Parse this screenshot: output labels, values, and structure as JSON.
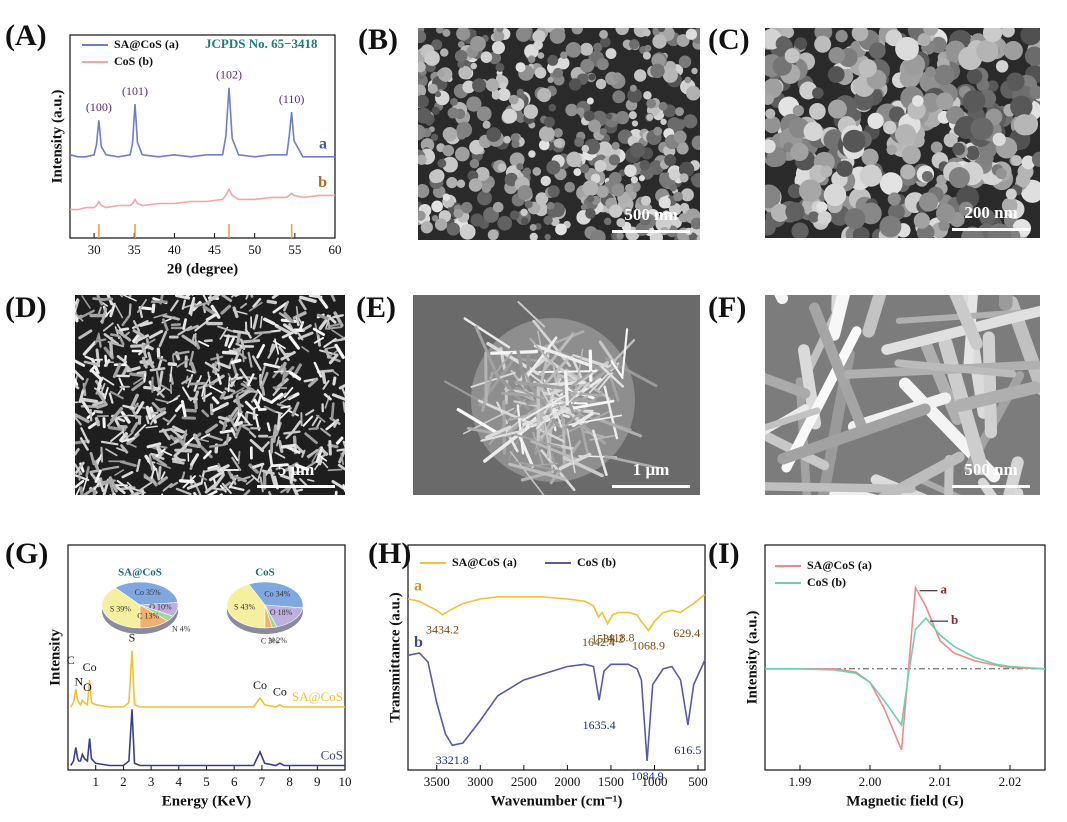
{
  "chart_data": [
    {
      "type": "line",
      "panel": "(A)",
      "note": "JCPDS No. 65−3418",
      "xlabel": "2θ (degree)",
      "ylabel": "Intensity (a.u.)",
      "x": [
        27,
        28,
        29,
        30,
        30.3,
        30.6,
        30.9,
        31.5,
        33,
        34.5,
        34.8,
        35.1,
        35.4,
        36,
        38,
        40,
        42,
        44,
        46,
        46.4,
        46.8,
        47.2,
        48,
        50,
        52,
        54,
        54.3,
        54.6,
        54.9,
        56,
        58,
        60
      ],
      "series": [
        {
          "name": "SA@CoS (a)",
          "label": "a",
          "color": "#6f7fc4",
          "values": [
            41,
            40,
            40,
            41,
            46,
            58,
            45,
            41,
            40,
            41,
            47,
            66,
            47,
            41,
            40,
            41,
            40,
            41,
            41,
            50,
            74,
            49,
            41,
            40,
            41,
            41,
            50,
            62,
            48,
            40,
            40,
            40
          ]
        },
        {
          "name": "CoS (b)",
          "label": "b",
          "color": "#f4a6a6",
          "values": [
            14,
            14,
            15,
            15,
            16,
            18,
            16,
            15,
            16,
            16,
            17,
            19,
            17,
            16,
            17,
            17,
            18,
            18,
            19,
            21,
            24,
            21,
            19,
            19,
            20,
            20,
            21,
            22,
            21,
            20,
            21,
            21
          ]
        }
      ],
      "reference_peaks": [
        30.6,
        35.1,
        46.8,
        54.6
      ],
      "reference_color": "#f0a030",
      "peak_labels": [
        "(100)",
        "(101)",
        "(102)",
        "(110)"
      ],
      "xlim": [
        27,
        60
      ],
      "xticks": [
        30,
        35,
        40,
        45,
        50,
        55,
        60
      ],
      "ylim": [
        0,
        100
      ]
    },
    {
      "type": "line",
      "panel": "(G)",
      "xlabel": "Energy (KeV)",
      "ylabel": "Intensity",
      "x": [
        0.1,
        0.2,
        0.28,
        0.35,
        0.39,
        0.45,
        0.52,
        0.6,
        0.7,
        0.78,
        0.85,
        1,
        1.5,
        2,
        2.2,
        2.31,
        2.4,
        2.6,
        3,
        4,
        5,
        6,
        6.7,
        6.93,
        7.1,
        7.5,
        7.65,
        7.8,
        8.5,
        9,
        10
      ],
      "series": [
        {
          "name": "SA@CoS",
          "color": "#f2c232",
          "values": [
            28,
            30,
            36,
            31,
            30,
            29,
            31,
            30,
            29,
            40,
            30,
            29,
            28,
            28,
            30,
            53,
            29,
            28,
            28,
            28,
            28,
            28,
            28,
            32,
            29,
            28,
            29,
            28,
            28,
            28,
            28
          ]
        },
        {
          "name": "CoS",
          "color": "#3a3f8a",
          "values": [
            2,
            4,
            10,
            5,
            4,
            4,
            7,
            5,
            4,
            14,
            5,
            3,
            2,
            2,
            4,
            27,
            3,
            2,
            2,
            2,
            2,
            2,
            2,
            8,
            3,
            2,
            3,
            2,
            2,
            2,
            2
          ]
        }
      ],
      "peak_positions": [
        0.28,
        0.39,
        0.52,
        0.78,
        2.31,
        6.93,
        7.65
      ],
      "peak_labels": [
        "C",
        "N",
        "O",
        "Co",
        "S",
        "Co",
        "Co"
      ],
      "xlim": [
        0,
        10
      ],
      "xticks": [
        1,
        2,
        3,
        4,
        5,
        6,
        7,
        8,
        9,
        10
      ],
      "ylim": [
        0,
        100
      ],
      "insets": [
        {
          "type": "pie",
          "title": "SA@CoS",
          "values": [
            39,
            35,
            10,
            4,
            13
          ],
          "value_labels": [
            "S 39%",
            "Co 35%",
            "O 10%",
            "N 4%",
            "C 13%"
          ],
          "colors": [
            "#f5f0a0",
            "#7fa8e0",
            "#c0b0e0",
            "#a0d8a0",
            "#f0b070"
          ]
        },
        {
          "type": "pie",
          "title": "CoS",
          "values": [
            43,
            34,
            18,
            2,
            3
          ],
          "value_labels": [
            "S 43%",
            "Co 34%",
            "O 18%",
            "N 2%",
            "C 3%"
          ],
          "colors": [
            "#f5f0a0",
            "#7fa8e0",
            "#c0b0e0",
            "#a0d8a0",
            "#f0b070"
          ]
        }
      ]
    },
    {
      "type": "line",
      "panel": "(H)",
      "xlabel": "Wavenumber (cm⁻¹)",
      "ylabel": "Transmittance (a.u.)",
      "series": [
        {
          "name": "SA@CoS (a)",
          "label": "a",
          "color": "#f2c232",
          "x": [
            3830,
            3700,
            3600,
            3500,
            3434.2,
            3350,
            3200,
            3000,
            2800,
            2500,
            2300,
            2000,
            1800,
            1700,
            1642.4,
            1600,
            1538.2,
            1480,
            1418.8,
            1300,
            1200,
            1150,
            1068.9,
            1000,
            900,
            800,
            700,
            629.4,
            550,
            420
          ],
          "values": [
            76,
            75,
            73,
            71,
            69,
            71,
            74,
            76,
            77,
            77,
            77,
            76,
            75,
            73,
            68,
            70,
            65,
            69,
            70,
            70,
            69,
            66,
            62,
            66,
            70,
            71,
            70,
            72,
            74,
            78
          ],
          "peaks": [
            3434.2,
            1642.4,
            1538.2,
            1418.8,
            1068.9,
            629.4
          ]
        },
        {
          "name": "CoS (b)",
          "label": "b",
          "color": "#5a5aa8",
          "x": [
            3830,
            3700,
            3600,
            3500,
            3400,
            3321.8,
            3200,
            3000,
            2800,
            2500,
            2000,
            1800,
            1700,
            1635.4,
            1580,
            1500,
            1300,
            1200,
            1150,
            1084.9,
            1020,
            900,
            800,
            700,
            616.5,
            550,
            420
          ],
          "values": [
            51,
            52,
            48,
            30,
            16,
            11,
            12,
            22,
            33,
            40,
            46,
            47,
            46,
            31,
            44,
            47,
            47,
            45,
            40,
            4,
            38,
            45,
            46,
            40,
            20,
            38,
            49
          ],
          "peaks": [
            3321.8,
            1635.4,
            1084.9,
            616.5
          ]
        }
      ],
      "xlim": [
        3830,
        420
      ],
      "xticks": [
        3500,
        3000,
        2500,
        2000,
        1500,
        1000,
        500
      ],
      "ylim": [
        0,
        100
      ]
    },
    {
      "type": "line",
      "panel": "(I)",
      "xlabel": "Magnetic field (G)",
      "ylabel": "Intensity (a.u.)",
      "x": [
        1.985,
        1.99,
        1.995,
        1.998,
        2.0,
        2.002,
        2.0045,
        2.0055,
        2.0065,
        2.008,
        2.01,
        2.012,
        2.015,
        2.018,
        2.02,
        2.025
      ],
      "series": [
        {
          "name": "SA@CoS (a)",
          "label": "a",
          "color": "#f08a8a",
          "values": [
            0,
            0,
            0,
            -3,
            -12,
            -35,
            -72,
            0,
            72,
            55,
            25,
            14,
            7,
            3,
            1,
            0
          ]
        },
        {
          "name": "CoS (b)",
          "label": "b",
          "color": "#6fd0b0",
          "values": [
            0,
            0,
            -1,
            -4,
            -12,
            -28,
            -50,
            -5,
            35,
            45,
            30,
            20,
            10,
            4,
            2,
            0
          ]
        }
      ],
      "zero_line": true,
      "xlim": [
        1.985,
        2.025
      ],
      "xticks": [
        1.99,
        {
          "value": 2,
          "label": "2.00"
        },
        2.01,
        2.02
      ],
      "ylim": [
        -90,
        110
      ]
    }
  ],
  "images": [
    {
      "panel": "(B)",
      "scale_bar": "500 nm"
    },
    {
      "panel": "(C)",
      "scale_bar": "200 nm"
    },
    {
      "panel": "(D)",
      "scale_bar": "5 μm"
    },
    {
      "panel": "(E)",
      "scale_bar": "1 μm"
    },
    {
      "panel": "(F)",
      "scale_bar": "500 nm"
    }
  ]
}
